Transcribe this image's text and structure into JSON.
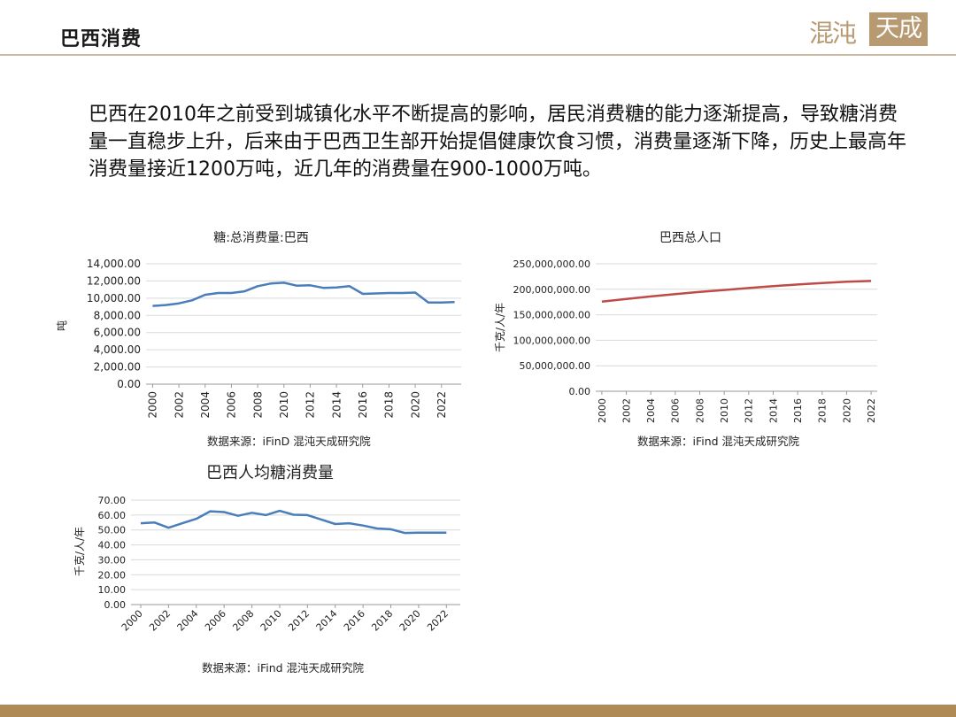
{
  "header": {
    "title": "巴西消费"
  },
  "logo": {
    "left_text": "混沌",
    "box_text": "天成"
  },
  "body_text": "巴西在2010年之前受到城镇化水平不断提高的影响，居民消费糖的能力逐渐提高，导致糖消费量一直稳步上升，后来由于巴西卫生部开始提倡健康饮食习惯，消费量逐渐下降，历史上最高年消费量接近1200万吨，近几年的消费量在900-1000万吨。",
  "colors": {
    "blue_series": "#4a7ebb",
    "red_series": "#be4b48",
    "gold": "#b89a72",
    "grid": "#d9d9d9"
  },
  "chart_data": [
    {
      "type": "line",
      "title": "糖:总消费量:巴西",
      "ylabel": "吨",
      "xlabel": "",
      "ylim": [
        0,
        14000
      ],
      "yticks": [
        "0.00",
        "2,000.00",
        "4,000.00",
        "6,000.00",
        "8,000.00",
        "10,000.00",
        "12,000.00",
        "14,000.00"
      ],
      "xticks": [
        "2000",
        "2002",
        "2004",
        "2006",
        "2008",
        "2010",
        "2012",
        "2014",
        "2016",
        "2018",
        "2020",
        "2022"
      ],
      "x": [
        2000,
        2001,
        2002,
        2003,
        2004,
        2005,
        2006,
        2007,
        2008,
        2009,
        2010,
        2011,
        2012,
        2013,
        2014,
        2015,
        2016,
        2017,
        2018,
        2019,
        2020,
        2021,
        2022,
        2023
      ],
      "values": [
        9100,
        9200,
        9400,
        9750,
        10400,
        10600,
        10600,
        10800,
        11400,
        11700,
        11800,
        11450,
        11500,
        11200,
        11250,
        11400,
        10500,
        10550,
        10600,
        10600,
        10650,
        9500,
        9500,
        9550
      ],
      "grid": true,
      "source": "数据来源：iFinD 混沌天成研究院"
    },
    {
      "type": "line",
      "title": "巴西总人口",
      "ylabel": "千克/人/年",
      "xlabel": "",
      "ylim": [
        0,
        250000000
      ],
      "yticks": [
        "0.00",
        "50,000,000.00",
        "100,000,000.00",
        "150,000,000.00",
        "200,000,000.00",
        "250,000,000.00"
      ],
      "xticks": [
        "2000",
        "2002",
        "2004",
        "2006",
        "2008",
        "2010",
        "2012",
        "2014",
        "2016",
        "2018",
        "2020",
        "2022"
      ],
      "x": [
        2000,
        2002,
        2004,
        2006,
        2008,
        2010,
        2012,
        2014,
        2016,
        2018,
        2020,
        2022
      ],
      "values": [
        175900000,
        181000000,
        185900000,
        190500000,
        194800000,
        198600000,
        202400000,
        206000000,
        209300000,
        212200000,
        214900000,
        216400000
      ],
      "grid": true,
      "source": "数据来源：iFind 混沌天成研究院"
    },
    {
      "type": "line",
      "title": "巴西人均糖消费量",
      "ylabel": "千克/人/年",
      "xlabel": "",
      "ylim": [
        0,
        70
      ],
      "yticks": [
        "0.00",
        "10.00",
        "20.00",
        "30.00",
        "40.00",
        "50.00",
        "60.00",
        "70.00"
      ],
      "xticks": [
        "2000",
        "2002",
        "2004",
        "2006",
        "2008",
        "2010",
        "2012",
        "2014",
        "2016",
        "2018",
        "2020",
        "2022"
      ],
      "x": [
        2000,
        2001,
        2002,
        2003,
        2004,
        2005,
        2006,
        2007,
        2008,
        2009,
        2010,
        2011,
        2012,
        2013,
        2014,
        2015,
        2016,
        2017,
        2018,
        2019,
        2020,
        2021,
        2022
      ],
      "values": [
        54.5,
        55,
        51.5,
        54.5,
        57.5,
        62.5,
        62,
        59.5,
        61.5,
        60,
        62.8,
        60.2,
        60,
        57,
        54,
        54.5,
        53,
        51,
        50.5,
        48,
        48.2,
        48.2,
        48.2
      ],
      "grid": true,
      "source": "数据来源：iFind  混沌天成研究院"
    }
  ]
}
